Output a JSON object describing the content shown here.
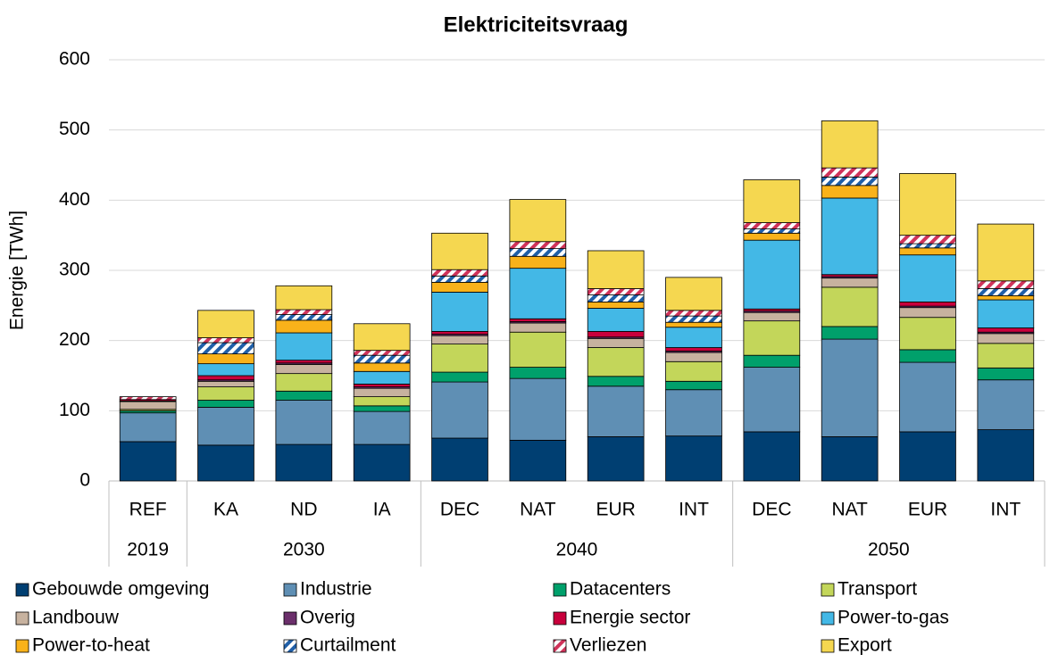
{
  "chart_data": {
    "type": "stacked_bar",
    "title": "Elektriciteitsvraag",
    "y_label": "Energie [TWh]",
    "groups": [
      {
        "name": "2019",
        "categories": [
          "REF"
        ]
      },
      {
        "name": "2030",
        "categories": [
          "KA",
          "ND",
          "IA"
        ]
      },
      {
        "name": "2040",
        "categories": [
          "DEC",
          "NAT",
          "EUR",
          "INT"
        ]
      },
      {
        "name": "2050",
        "categories": [
          "DEC",
          "NAT",
          "EUR",
          "INT"
        ]
      }
    ],
    "ylim": [
      0,
      600
    ],
    "yticks": [
      0,
      100,
      200,
      300,
      400,
      500,
      600
    ],
    "grid": true,
    "series": [
      {
        "name": "Gebouwde omgeving",
        "color": "#003f72",
        "values": [
          56,
          51,
          52,
          52,
          61,
          58,
          63,
          64,
          70,
          63,
          70,
          73
        ]
      },
      {
        "name": "Industrie",
        "color": "#5f8fb4",
        "values": [
          41,
          54,
          63,
          47,
          80,
          88,
          72,
          66,
          92,
          139,
          99,
          71
        ]
      },
      {
        "name": "Datacenters",
        "color": "#00a06b",
        "values": [
          3,
          10,
          13,
          8,
          14,
          16,
          14,
          12,
          17,
          18,
          18,
          17
        ]
      },
      {
        "name": "Transport",
        "color": "#c3d65a",
        "values": [
          2,
          19,
          25,
          13,
          40,
          50,
          41,
          28,
          49,
          56,
          46,
          35
        ]
      },
      {
        "name": "Landbouw",
        "color": "#c7b29f",
        "values": [
          11,
          8,
          13,
          12,
          12,
          13,
          13,
          13,
          12,
          13,
          14,
          14
        ]
      },
      {
        "name": "Overig",
        "color": "#6b2f6b",
        "values": [
          1,
          2,
          2,
          2,
          2,
          2,
          2,
          2,
          2,
          2,
          2,
          2
        ]
      },
      {
        "name": "Energie sector",
        "color": "#c8003c",
        "values": [
          2,
          6,
          4,
          4,
          4,
          4,
          8,
          5,
          3,
          3,
          6,
          6
        ]
      },
      {
        "name": "Power-to-gas",
        "color": "#43b8e6",
        "values": [
          0,
          17,
          39,
          18,
          56,
          72,
          33,
          29,
          98,
          109,
          67,
          40
        ]
      },
      {
        "name": "Power-to-heat",
        "color": "#f9b21a",
        "values": [
          0,
          14,
          18,
          12,
          14,
          17,
          9,
          7,
          10,
          18,
          10,
          6
        ]
      },
      {
        "name": "Curtailment",
        "color": "#1f5fa8",
        "pattern": "hatch",
        "values": [
          0,
          16,
          8,
          11,
          9,
          11,
          10,
          9,
          6,
          12,
          6,
          10
        ]
      },
      {
        "name": "Verliezen",
        "color": "#d0335a",
        "pattern": "hatch",
        "values": [
          4,
          7,
          7,
          7,
          9,
          10,
          9,
          8,
          9,
          13,
          12,
          11
        ]
      },
      {
        "name": "Export",
        "color": "#f5d750",
        "values": [
          0,
          39,
          34,
          38,
          52,
          60,
          54,
          47,
          61,
          67,
          88,
          81
        ]
      }
    ]
  }
}
